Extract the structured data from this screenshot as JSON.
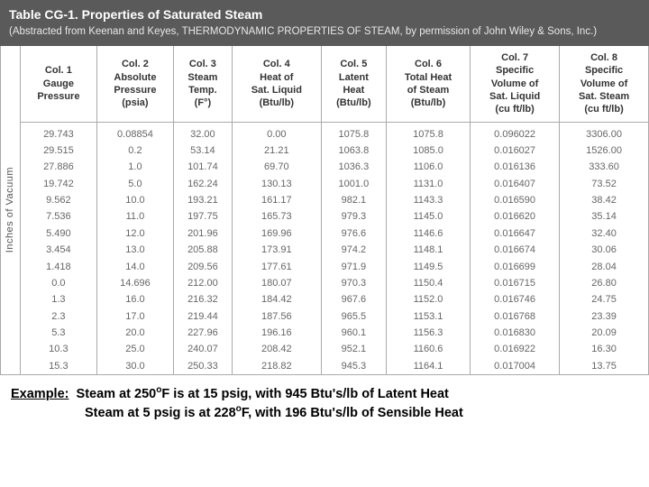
{
  "header": {
    "title": "Table CG-1. Properties of Saturated Steam",
    "subtitle": "(Abstracted from Keenan and Keyes, THERMODYNAMIC PROPERTIES OF STEAM, by permission of John Wiley & Sons, Inc.)"
  },
  "vlabel": "Inches of Vacuum",
  "columns": [
    "Col. 1<br>Gauge<br>Pressure",
    "Col. 2<br>Absolute<br>Pressure<br>(psia)",
    "Col. 3<br>Steam<br>Temp.<br>(F°)",
    "Col. 4<br>Heat of<br>Sat. Liquid<br>(Btu/lb)",
    "Col. 5<br>Latent<br>Heat<br>(Btu/lb)",
    "Col. 6<br>Total Heat<br>of Steam<br>(Btu/lb)",
    "Col. 7<br>Specific<br>Volume of<br>Sat. Liquid<br>(cu ft/lb)",
    "Col. 8<br>Specific<br>Volume of<br>Sat. Steam<br>(cu ft/lb)"
  ],
  "rows": [
    [
      "29.743",
      "0.08854",
      "32.00",
      "0.00",
      "1075.8",
      "1075.8",
      "0.096022",
      "3306.00"
    ],
    [
      "29.515",
      "0.2",
      "53.14",
      "21.21",
      "1063.8",
      "1085.0",
      "0.016027",
      "1526.00"
    ],
    [
      "27.886",
      "1.0",
      "101.74",
      "69.70",
      "1036.3",
      "1106.0",
      "0.016136",
      "333.60"
    ],
    [
      "19.742",
      "5.0",
      "162.24",
      "130.13",
      "1001.0",
      "1131.0",
      "0.016407",
      "73.52"
    ],
    [
      "9.562",
      "10.0",
      "193.21",
      "161.17",
      "982.1",
      "1143.3",
      "0.016590",
      "38.42"
    ],
    [
      "7.536",
      "11.0",
      "197.75",
      "165.73",
      "979.3",
      "1145.0",
      "0.016620",
      "35.14"
    ],
    [
      "5.490",
      "12.0",
      "201.96",
      "169.96",
      "976.6",
      "1146.6",
      "0.016647",
      "32.40"
    ],
    [
      "3.454",
      "13.0",
      "205.88",
      "173.91",
      "974.2",
      "1148.1",
      "0.016674",
      "30.06"
    ],
    [
      "1.418",
      "14.0",
      "209.56",
      "177.61",
      "971.9",
      "1149.5",
      "0.016699",
      "28.04"
    ],
    [
      "0.0",
      "14.696",
      "212.00",
      "180.07",
      "970.3",
      "1150.4",
      "0.016715",
      "26.80"
    ],
    [
      "1.3",
      "16.0",
      "216.32",
      "184.42",
      "967.6",
      "1152.0",
      "0.016746",
      "24.75"
    ],
    [
      "2.3",
      "17.0",
      "219.44",
      "187.56",
      "965.5",
      "1153.1",
      "0.016768",
      "23.39"
    ],
    [
      "5.3",
      "20.0",
      "227.96",
      "196.16",
      "960.1",
      "1156.3",
      "0.016830",
      "20.09"
    ],
    [
      "10.3",
      "25.0",
      "240.07",
      "208.42",
      "952.1",
      "1160.6",
      "0.016922",
      "16.30"
    ],
    [
      "15.3",
      "30.0",
      "250.33",
      "218.82",
      "945.3",
      "1164.1",
      "0.017004",
      "13.75"
    ]
  ],
  "example": {
    "label": "Example:",
    "line1_a": "Steam at 250",
    "line1_b": "F is at 15 psig, with 945 Btu's/lb of Latent Heat",
    "line2_a": "Steam at 5 psig is at 228",
    "line2_b": "F, with 196 Btu's/lb of Sensible Heat"
  }
}
